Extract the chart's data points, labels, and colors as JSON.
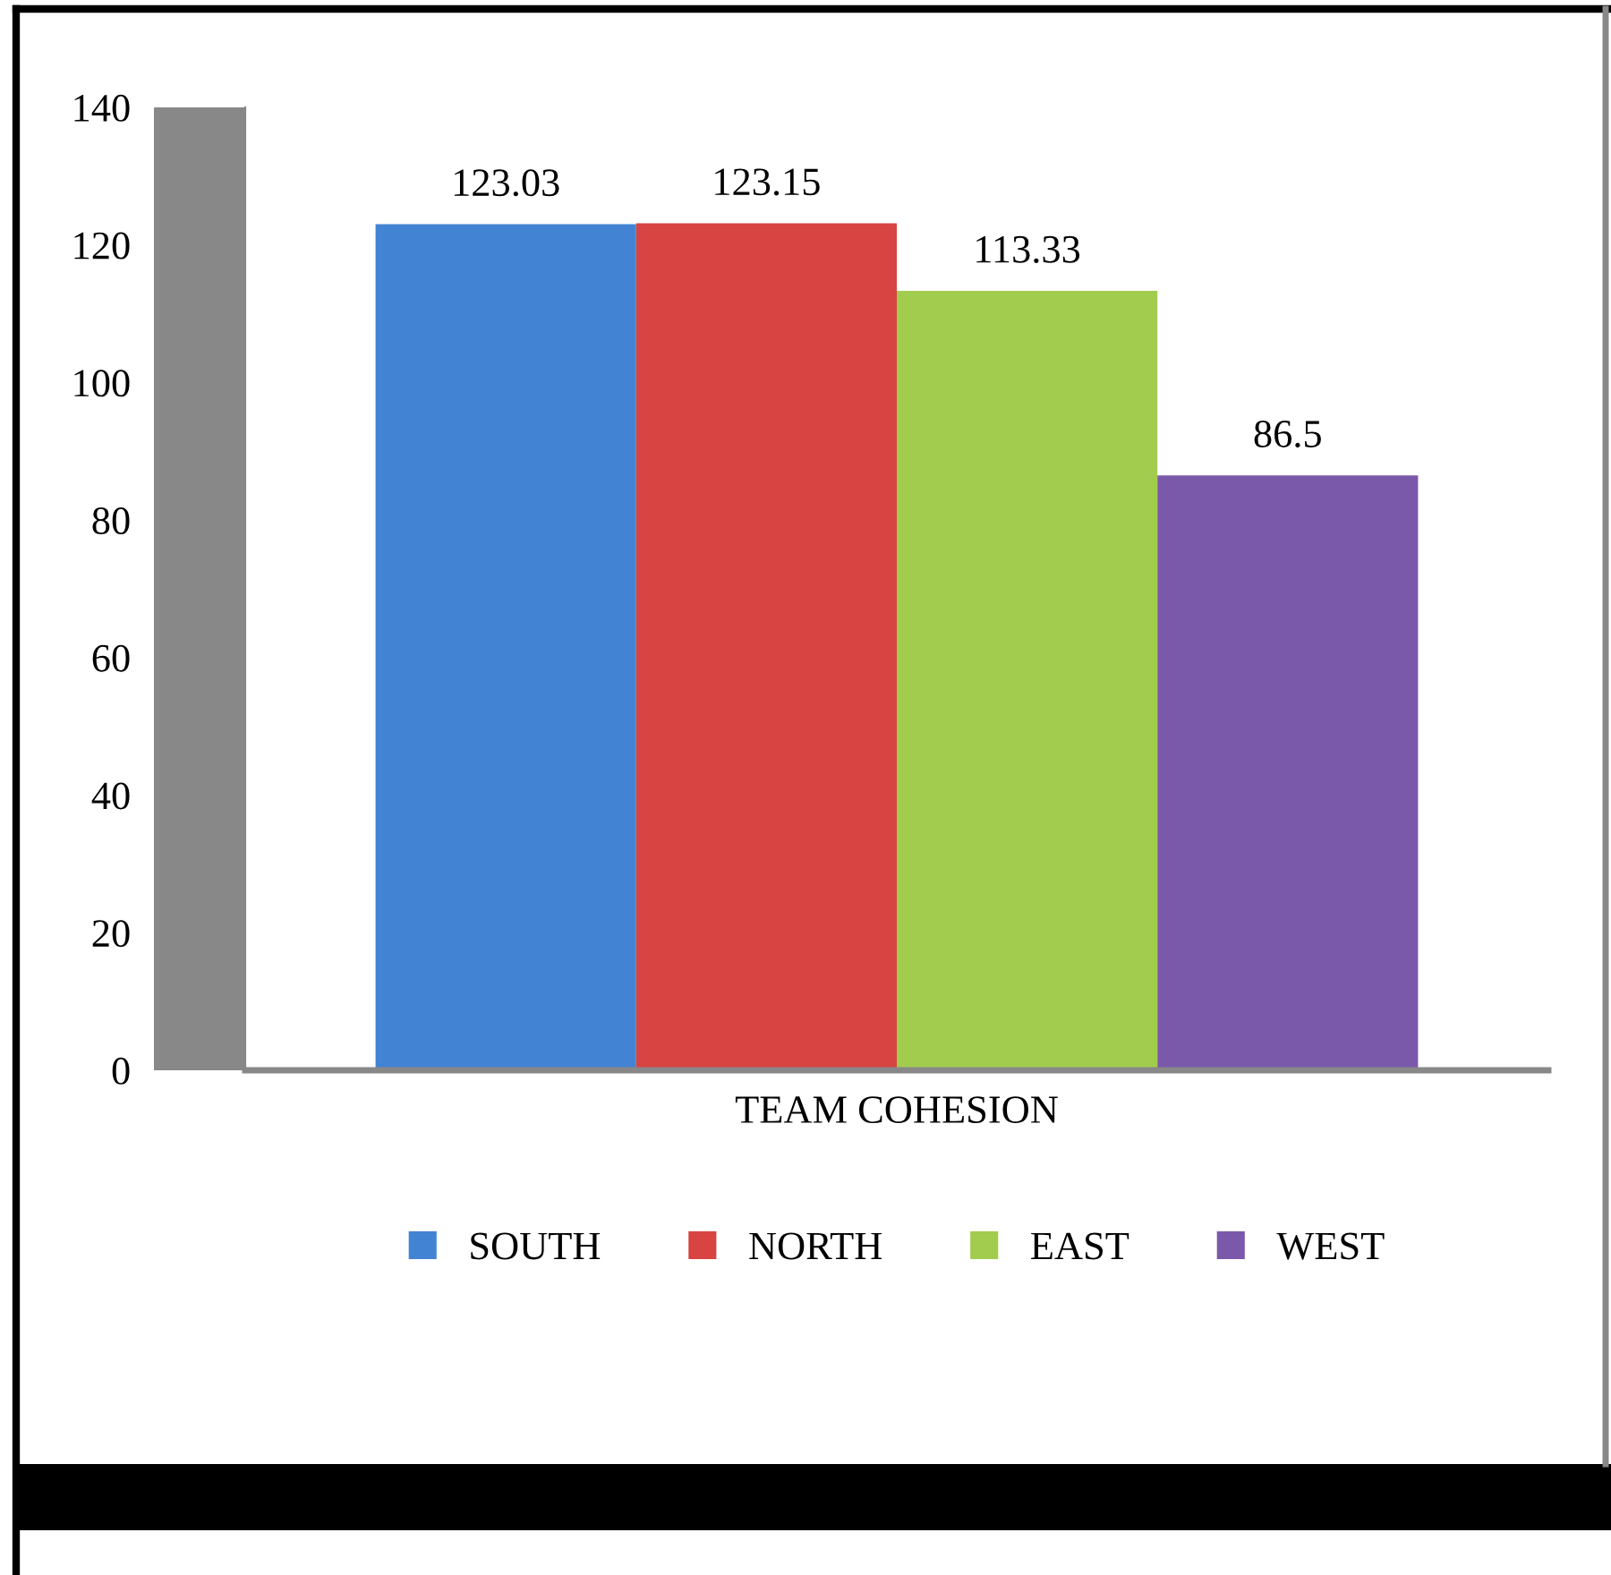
{
  "chart_data": {
    "type": "bar",
    "categories": [
      "TEAM COHESION"
    ],
    "series": [
      {
        "name": "SOUTH",
        "color": "#4383d4",
        "values": [
          123.03
        ]
      },
      {
        "name": "NORTH",
        "color": "#d84442",
        "values": [
          123.15
        ]
      },
      {
        "name": "EAST",
        "color": "#a2cc4e",
        "values": [
          113.33
        ]
      },
      {
        "name": "WEST",
        "color": "#7b59aa",
        "values": [
          86.5
        ]
      }
    ],
    "ylim": [
      0,
      140
    ],
    "yticks": [
      0,
      20,
      40,
      60,
      80,
      100,
      120,
      140
    ],
    "data_labels": true,
    "legend": "bottom",
    "grid": false
  }
}
